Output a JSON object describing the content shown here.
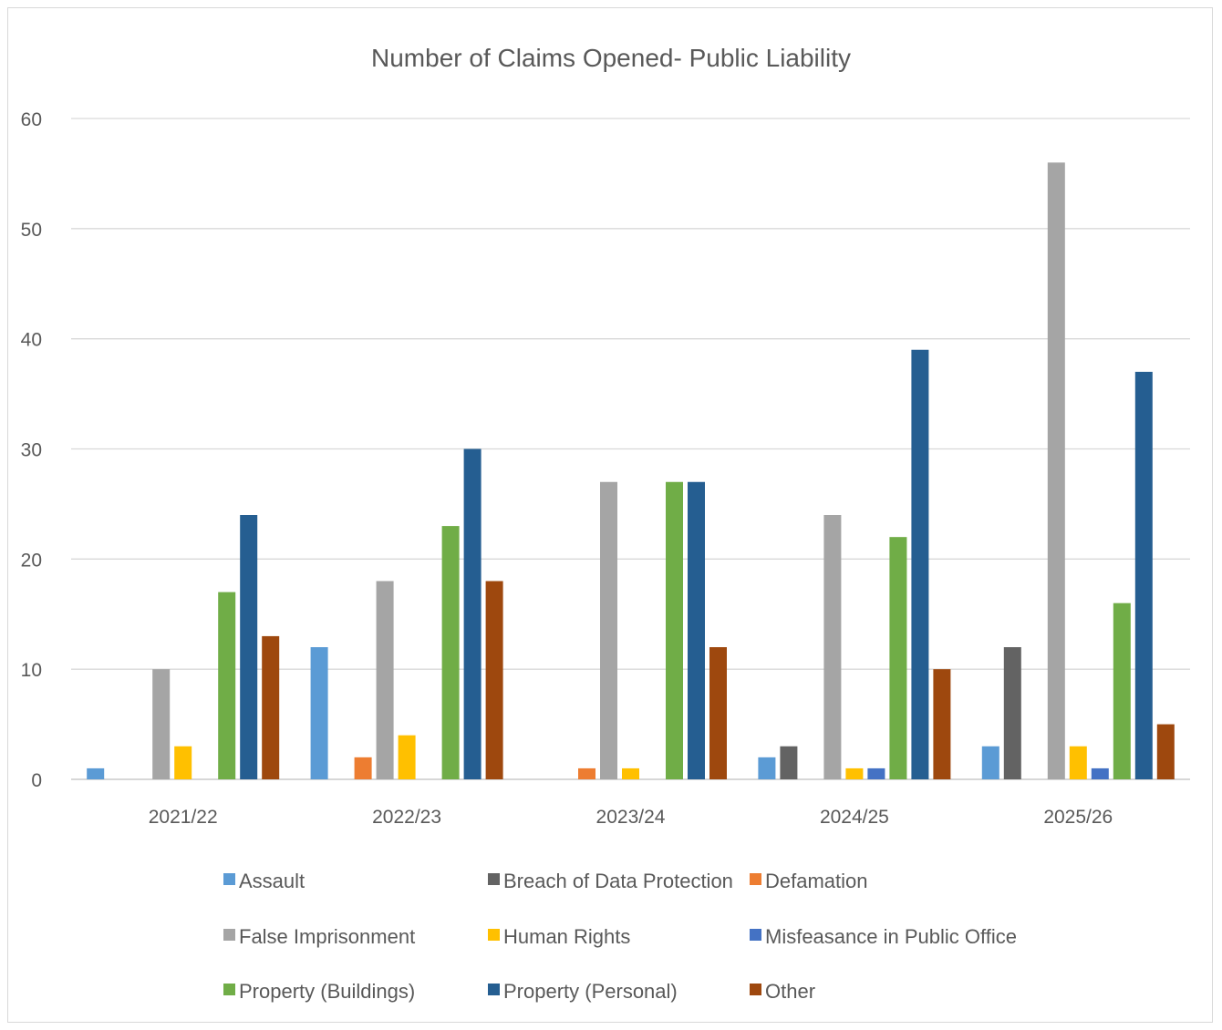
{
  "chart_data": {
    "type": "bar",
    "title": "Number of Claims Opened- Public Liability",
    "xlabel": "",
    "ylabel": "",
    "categories": [
      "2021/22",
      "2022/23",
      "2023/24",
      "2024/25",
      "2025/26"
    ],
    "ylim": [
      0,
      60
    ],
    "yticks": [
      0,
      10,
      20,
      30,
      40,
      50,
      60
    ],
    "ytick_labels": [
      "0",
      "10",
      "20",
      "30",
      "40",
      "50",
      "60"
    ],
    "grid": true,
    "legend_position": "bottom",
    "series": [
      {
        "name": "Assault",
        "color": "#5b9bd5",
        "values": [
          1,
          12,
          0,
          2,
          3
        ]
      },
      {
        "name": "Breach of Data Protection",
        "color": "#636363",
        "values": [
          0,
          0,
          0,
          3,
          12
        ]
      },
      {
        "name": "Defamation",
        "color": "#ed7d31",
        "values": [
          0,
          2,
          1,
          0,
          0
        ]
      },
      {
        "name": "False Imprisonment",
        "color": "#a5a5a5",
        "values": [
          10,
          18,
          27,
          24,
          56
        ]
      },
      {
        "name": "Human Rights",
        "color": "#ffc000",
        "values": [
          3,
          4,
          1,
          1,
          3
        ]
      },
      {
        "name": "Misfeasance in Public Office",
        "color": "#4472c4",
        "values": [
          0,
          0,
          0,
          1,
          1
        ]
      },
      {
        "name": "Property (Buildings)",
        "color": "#70ad47",
        "values": [
          17,
          23,
          27,
          22,
          16
        ]
      },
      {
        "name": "Property (Personal)",
        "color": "#255e91",
        "values": [
          24,
          30,
          27,
          39,
          37
        ]
      },
      {
        "name": "Other",
        "color": "#9e480e",
        "values": [
          13,
          18,
          12,
          10,
          5
        ]
      }
    ]
  }
}
